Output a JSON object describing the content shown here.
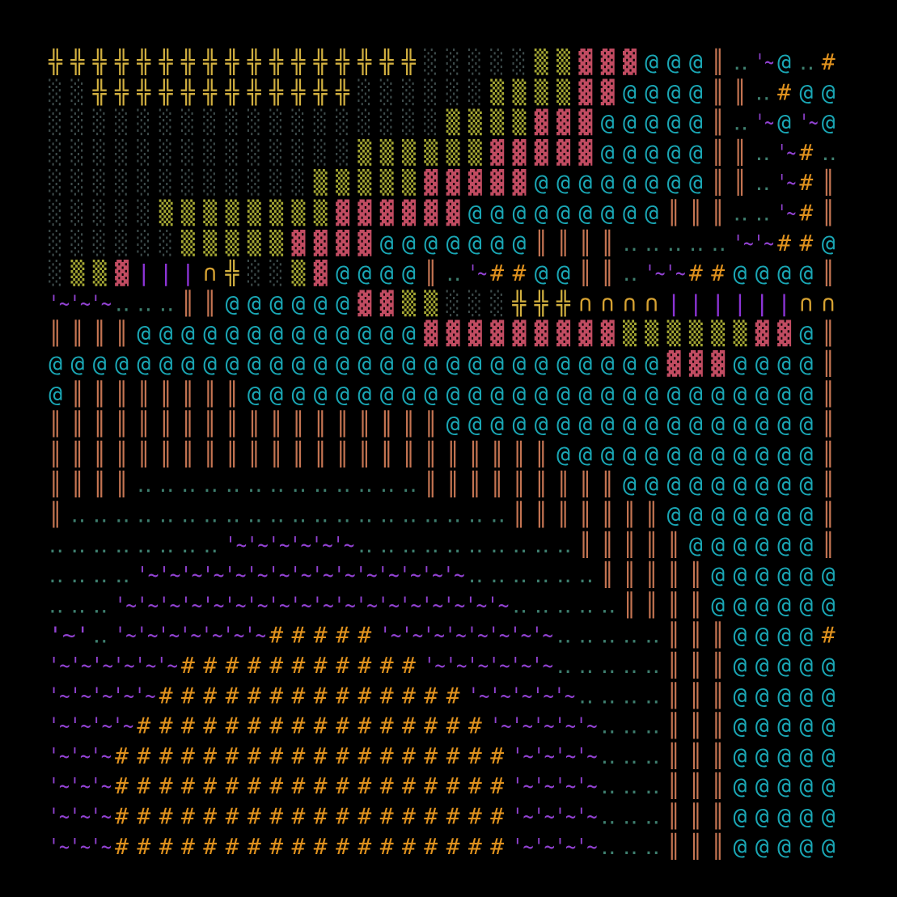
{
  "map": {
    "rows": [
      [
        "╬╬╬╬╬╬╬╬╬╬╬╬╬╬╬╬╬",
        "░░░░░",
        "▒▒",
        "▓▓▓",
        "@@@",
        "║",
        "‥",
        "'~",
        "@",
        "‥",
        "#"
      ],
      [
        "░░",
        "╬╬╬╬╬╬╬╬╬╬╬╬",
        "░░░░░░",
        "▒▒▒▒",
        "▓▓",
        "@@@@",
        "║",
        "║",
        "‥",
        "#",
        "@@"
      ],
      [
        "░░░░░░░░░░░░░░░░░░",
        "▒▒▒▒",
        "▓▓▓",
        "@@@@@",
        "║",
        "‥",
        "'~",
        "@",
        "'~",
        "@"
      ],
      [
        "░░░░░░░░░░░░░░",
        "▒▒▒▒▒▒",
        "▓▓▓▓▓",
        "@@@@@",
        "║",
        "║",
        "‥",
        "'~",
        "#",
        "‥"
      ],
      [
        "░░░░░░░░░░░░",
        "▒▒▒▒▒",
        "▓▓▓▓▓",
        "@@@@@@@@",
        "║",
        "║",
        "‥",
        "'~",
        "#",
        "║"
      ],
      [
        "░░░░░",
        "▒▒▒▒▒▒▒▒",
        "▓▓▓▓▓▓",
        "@@@@@@@@@",
        "║",
        "║",
        "║",
        "‥",
        "‥",
        "'~",
        "#",
        "║"
      ],
      [
        "░░░░░░",
        "▒▒▒▒▒",
        "▓▓▓▓",
        "@@@@@@@",
        "║║║║",
        "‥‥‥‥‥",
        "'~'~",
        "##",
        "@"
      ],
      [
        "░",
        "▒▒",
        "▓",
        "|||",
        "∩",
        "╬",
        "░░",
        "▒",
        "▓",
        "@@@@",
        "║",
        "‥",
        "'~",
        "##",
        "@@",
        "║║",
        "‥",
        "'~'~",
        "##",
        "@@@@",
        "║"
      ],
      [
        "'~'~'~",
        "‥‥‥",
        "║║",
        "@@@@@@",
        "▓▓",
        "▒▒",
        "░░░",
        "╬╬╬",
        "∩∩∩∩",
        "||||||",
        "∩∩"
      ],
      [
        "║║║║",
        "@@@@@@@@@@@@@",
        "▓▓▓▓▓▓▓▓▓",
        "▒▒▒▒▒▒",
        "▓▓",
        "@",
        "║"
      ],
      [
        "@@@@@@@@@@@@@@@@@@@@@@@@@@@@",
        "▓▓▓",
        "@@@@",
        "║"
      ],
      [
        "@",
        "║║║║║║║║",
        "@@@@@@@@@@@@@@@@@@@@@@@@@@",
        "║"
      ],
      [
        "║║║║║║║║║║║║║║║║║║",
        "@@@@@@@@@@@@@@@@@",
        "║"
      ],
      [
        "║║║║║║║║║║║║║║║║║║║║║║║",
        "@@@@@@@@@@@@",
        "║"
      ],
      [
        "║║║║",
        "‥‥‥‥‥‥‥‥‥‥‥‥‥",
        "║║║║║║║║║",
        "@@@@@@@@@",
        "║"
      ],
      [
        "║",
        "‥‥‥‥‥‥‥‥‥‥‥‥‥‥‥‥‥‥‥‥",
        "║║║║║║║",
        "@@@@@@@",
        "║"
      ],
      [
        "‥‥‥‥‥‥‥‥",
        "'~'~'~'~'~'~",
        "‥‥‥‥‥‥‥‥‥‥",
        "║║║║║",
        "@@@@@@",
        "║"
      ],
      [
        "‥‥‥‥",
        "'~'~'~'~'~'~'~'~'~'~'~'~'~'~'~",
        "‥‥‥‥‥‥",
        "║║║║║",
        "@@@@@@"
      ],
      [
        "‥‥‥",
        "'~'~'~'~'~'~'~'~'~'~'~'~'~'~'~'~'~'~",
        "‥‥‥‥‥",
        "║║║║",
        "@@@@@@"
      ],
      [
        "'~'",
        "‥",
        "'~'~'~'~'~'~'~",
        "#####",
        "'~'~'~'~'~'~'~'~",
        "‥‥‥‥‥",
        "║║║",
        "@@@@",
        "#"
      ],
      [
        "'~'~'~'~'~'~",
        "###########",
        "'~'~'~'~'~'~",
        "‥‥‥‥‥",
        "║║║",
        "@@@@@"
      ],
      [
        "'~'~'~'~'~",
        "##############",
        "'~'~'~'~'~",
        "‥‥‥‥",
        "║║║",
        "@@@@@"
      ],
      [
        "'~'~'~'~",
        "################",
        "'~'~'~'~'~",
        "‥‥‥",
        "║║║",
        "@@@@@"
      ],
      [
        "'~'~'~",
        "##################",
        "'~'~'~'~",
        "‥‥‥",
        "║║║",
        "@@@@@"
      ],
      [
        "'~'~'~",
        "##################",
        "'~'~'~'~",
        "‥‥‥",
        "║║║",
        "@@@@@"
      ],
      [
        "'~'~'~",
        "##################",
        "'~'~'~'~",
        "‥‥‥",
        "║║║",
        "@@@@@"
      ],
      [
        "'~'~'~",
        "##################",
        "'~'~'~'~",
        "‥‥‥",
        "║║║",
        "@@@@@"
      ]
    ]
  }
}
